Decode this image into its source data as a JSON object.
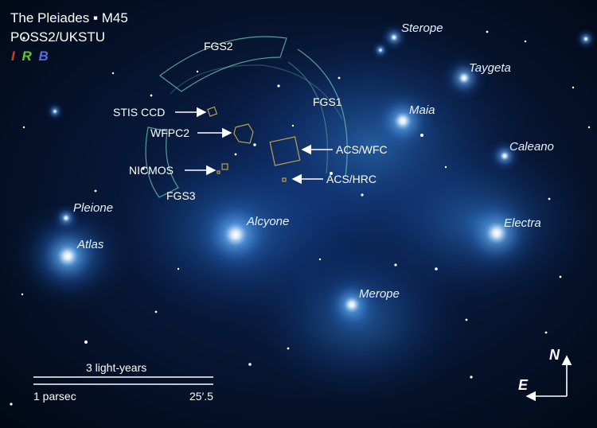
{
  "header": {
    "title": "The Pleiades ▪ M45",
    "survey": "POSS2/UKSTU",
    "filters": [
      {
        "label": "I",
        "color": "#d93a2b"
      },
      {
        "label": "R",
        "color": "#63c436"
      },
      {
        "label": "B",
        "color": "#4f6fe8"
      }
    ]
  },
  "stars": {
    "sterope": "Sterope",
    "taygeta": "Taygeta",
    "maia": "Maia",
    "caleano": "Caleano",
    "electra": "Electra",
    "pleione": "Pleione",
    "atlas": "Atlas",
    "alcyone": "Alcyone",
    "merope": "Merope"
  },
  "instruments": {
    "fgs1": "FGS1",
    "fgs2": "FGS2",
    "fgs3": "FGS3",
    "stis_ccd": "STIS CCD",
    "wfpc2": "WFPC2",
    "nicmos": "NICMOS",
    "acs_wfc": "ACS/WFC",
    "acs_hrc": "ACS/HRC"
  },
  "scale_bar": {
    "light_years": "3 light-years",
    "parsec": "1 parsec",
    "arcmin": "25′.5"
  },
  "compass": {
    "north": "N",
    "east": "E"
  },
  "colors": {
    "fgs_outline": "#5fb8a8",
    "aperture_outline": "#b8a24a",
    "star_glow": "#6ab6ff"
  }
}
